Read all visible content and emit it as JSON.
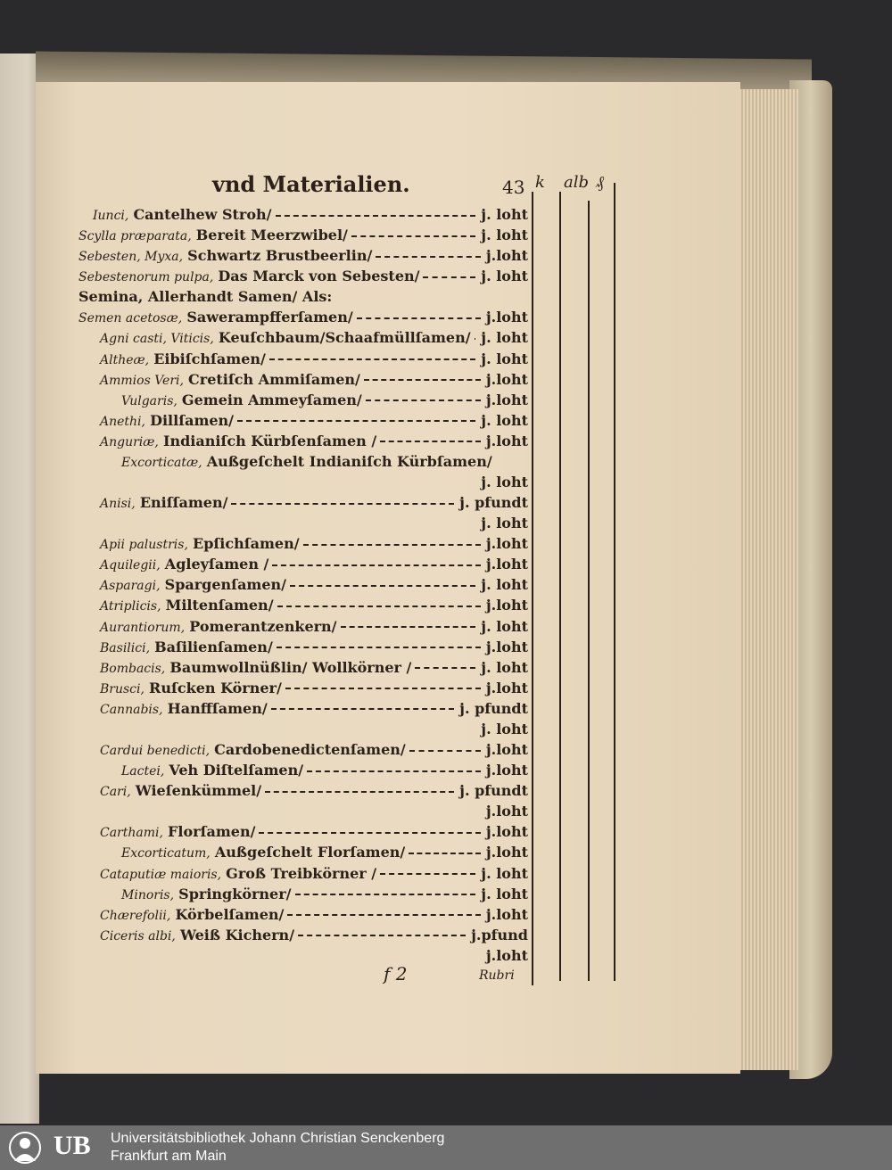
{
  "header": {
    "title": "vnd Materialien.",
    "page_number": "43",
    "columns": [
      "k",
      "alb",
      "₰"
    ]
  },
  "rows": [
    {
      "lat": "Iunci,",
      "ger": "Cantelhew Stroh/",
      "unit": "j. loht",
      "indent": 2
    },
    {
      "lat": "Scylla præparata,",
      "ger": "Bereit Meerzwibel/",
      "unit": "j. loht",
      "indent": 0
    },
    {
      "lat": "Sebesten, Myxa,",
      "ger": "Schwartz Brustbeerlin/",
      "unit": "j.loht",
      "indent": 0
    },
    {
      "lat": "Sebestenorum pulpa,",
      "ger": "Das Marck von Sebesten/",
      "unit": "j. loht",
      "indent": 0
    },
    {
      "lat": "",
      "ger": "Semina, Allerhandt Samen/ Als:",
      "unit": "",
      "indent": 0
    },
    {
      "lat": "Semen acetosæ,",
      "ger": "Sawerampfferſamen/",
      "unit": "j.loht",
      "indent": 0
    },
    {
      "lat": "Agni casti, Viticis,",
      "ger": "Keuſchbaum/Schaafmüllſamen/",
      "unit": "j. loht",
      "indent": 3
    },
    {
      "lat": "Altheæ,",
      "ger": "Eibiſchſamen/",
      "unit": "j. loht",
      "indent": 3
    },
    {
      "lat": "Ammios Veri,",
      "ger": "Cretiſch Ammiſamen/",
      "unit": "j.loht",
      "indent": 3
    },
    {
      "lat": "Vulgaris,",
      "ger": "Gemein Ammeyſamen/",
      "unit": "j.loht",
      "indent": 6
    },
    {
      "lat": "Anethi,",
      "ger": "Dillſamen/",
      "unit": "j. loht",
      "indent": 3
    },
    {
      "lat": "Anguriæ,",
      "ger": "Indianiſch Kürbſenſamen /",
      "unit": "j.loht",
      "indent": 3
    },
    {
      "lat": "Excorticatæ,",
      "ger": "Außgeſchelt Indianiſch Kürbſamen/",
      "unit": "",
      "indent": 6
    },
    {
      "lat": "",
      "ger": "",
      "unit": "j. loht",
      "indent": 0
    },
    {
      "lat": "Anisi,",
      "ger": "Eniſſamen/",
      "unit": "j. pfundt",
      "indent": 3
    },
    {
      "lat": "",
      "ger": "",
      "unit": "j. loht",
      "indent": 0
    },
    {
      "lat": "Apii palustris,",
      "ger": "Epſichſamen/",
      "unit": "j.loht",
      "indent": 3
    },
    {
      "lat": "Aquilegii,",
      "ger": "Agleyſamen /",
      "unit": "j.loht",
      "indent": 3
    },
    {
      "lat": "Asparagi,",
      "ger": "Spargenſamen/",
      "unit": "j. loht",
      "indent": 3
    },
    {
      "lat": "Atriplicis,",
      "ger": "Miltenſamen/",
      "unit": "j.loht",
      "indent": 3
    },
    {
      "lat": "Aurantiorum,",
      "ger": "Pomerantzenkern/",
      "unit": "j. loht",
      "indent": 3
    },
    {
      "lat": "Basilici,",
      "ger": "Baſilienſamen/",
      "unit": "j.loht",
      "indent": 3
    },
    {
      "lat": "Bombacis,",
      "ger": "Baumwollnüßlin/ Wollkörner /",
      "unit": "j. loht",
      "indent": 3
    },
    {
      "lat": "Brusci,",
      "ger": "Ruſcken Körner/",
      "unit": "j.loht",
      "indent": 3
    },
    {
      "lat": "Cannabis,",
      "ger": "Hanffſamen/",
      "unit": "j. pfundt",
      "indent": 3
    },
    {
      "lat": "",
      "ger": "",
      "unit": "j. loht",
      "indent": 0
    },
    {
      "lat": "Cardui benedicti,",
      "ger": "Cardobenedictenſamen/",
      "unit": "j.loht",
      "indent": 3
    },
    {
      "lat": "Lactei,",
      "ger": "Veh Diſtelſamen/",
      "unit": "j.loht",
      "indent": 6
    },
    {
      "lat": "Cari,",
      "ger": "Wieſenkümmel/",
      "unit": "j. pfundt",
      "indent": 3
    },
    {
      "lat": "",
      "ger": "",
      "unit": "j.loht",
      "indent": 0
    },
    {
      "lat": "Carthami,",
      "ger": "Florſamen/",
      "unit": "j.loht",
      "indent": 3
    },
    {
      "lat": "Excorticatum,",
      "ger": "Außgeſchelt Florſamen/",
      "unit": "j.loht",
      "indent": 6
    },
    {
      "lat": "Cataputiæ maioris,",
      "ger": "Groß Treibkörner /",
      "unit": "j. loht",
      "indent": 3
    },
    {
      "lat": "Minoris,",
      "ger": "Springkörner/",
      "unit": "j. loht",
      "indent": 6
    },
    {
      "lat": "Chærefolii,",
      "ger": "Körbelſamen/",
      "unit": "j.loht",
      "indent": 3
    },
    {
      "lat": "Ciceris albi,",
      "ger": "Weiß Kichern/",
      "unit": "j.pfund",
      "indent": 3
    },
    {
      "lat": "",
      "ger": "",
      "unit": "j.loht",
      "indent": 0
    }
  ],
  "footer": {
    "signature": "f 2",
    "catchword": "Rubri"
  },
  "library": {
    "logo_text": "UB",
    "name": "Universitätsbibliothek Johann Christian Senckenberg",
    "city": "Frankfurt am Main"
  }
}
